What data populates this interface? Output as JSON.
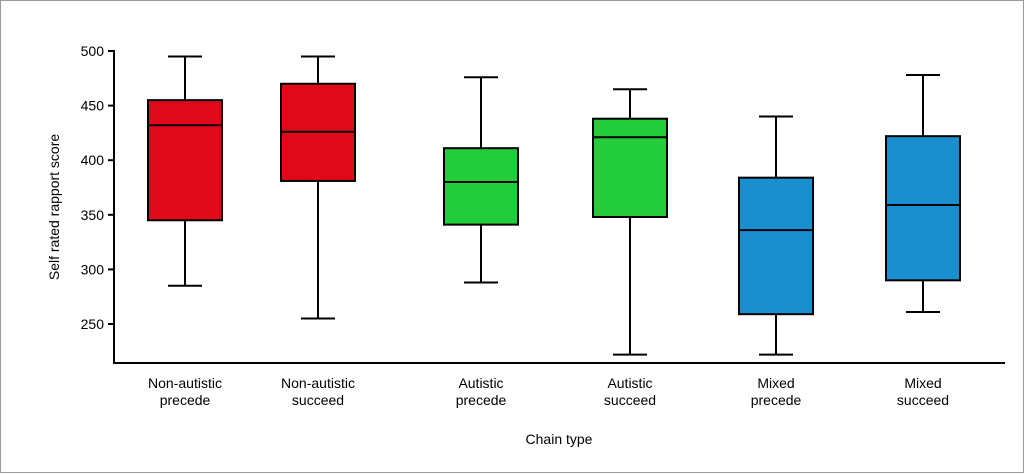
{
  "chart_data": {
    "type": "boxplot",
    "xlabel": "Chain type",
    "ylabel": "Self rated rapport score",
    "ylim": [
      250,
      500
    ],
    "yticks": [
      250,
      300,
      350,
      400,
      450,
      500
    ],
    "grid": false,
    "legend": "none",
    "categories": [
      {
        "lines": [
          "Non-autistic",
          "precede"
        ],
        "min": 285,
        "q1": 345,
        "median": 432,
        "q3": 455,
        "max": 495,
        "color": "#e0091a"
      },
      {
        "lines": [
          "Non-autistic",
          "succeed"
        ],
        "min": 255,
        "q1": 381,
        "median": 426,
        "q3": 470,
        "max": 495,
        "color": "#e0091a"
      },
      {
        "lines": [
          "Autistic",
          "precede"
        ],
        "min": 288,
        "q1": 341,
        "median": 380,
        "q3": 411,
        "max": 476,
        "color": "#22cc3a"
      },
      {
        "lines": [
          "Autistic",
          "succeed"
        ],
        "min": 222,
        "q1": 348,
        "median": 421,
        "q3": 438,
        "max": 465,
        "color": "#22cc3a"
      },
      {
        "lines": [
          "Mixed",
          "precede"
        ],
        "min": 222,
        "q1": 259,
        "median": 336,
        "q3": 384,
        "max": 440,
        "color": "#1a8fd0"
      },
      {
        "lines": [
          "Mixed",
          "succeed"
        ],
        "min": 261,
        "q1": 290,
        "median": 359,
        "q3": 422,
        "max": 478,
        "color": "#1a8fd0"
      }
    ]
  }
}
